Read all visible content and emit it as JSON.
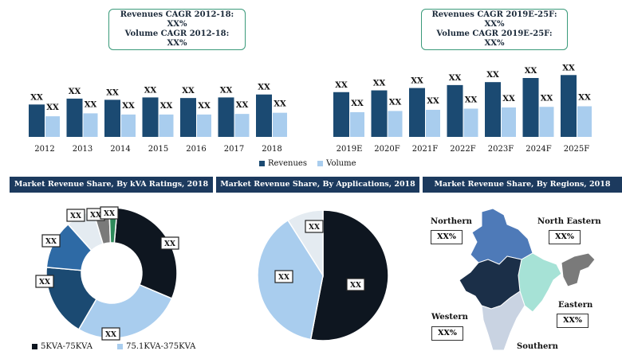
{
  "colors": {
    "revenue": "#1b4a72",
    "volume": "#a9cdee",
    "header": "#1c3a5e",
    "box_border": "#3a9a7a"
  },
  "cagr_left": {
    "line1": "Revenues CAGR 2012-18: XX%",
    "line2": "Volume CAGR 2012-18: XX%"
  },
  "cagr_right": {
    "line1": "Revenues CAGR 2019E-25F: XX%",
    "line2": "Volume CAGR 2019E-25F: XX%"
  },
  "chart_data": [
    {
      "type": "bar",
      "categories": [
        "2012",
        "2013",
        "2014",
        "2015",
        "2016",
        "2017",
        "2018",
        "2019E",
        "2020F",
        "2021F",
        "2022F",
        "2023F",
        "2024F",
        "2025F"
      ],
      "series": [
        {
          "name": "Revenues",
          "values": [
            55,
            65,
            63,
            67,
            66,
            67,
            72,
            76,
            79,
            83,
            88,
            93,
            100,
            105
          ],
          "labels": [
            "XX",
            "XX",
            "XX",
            "XX",
            "XX",
            "XX",
            "XX",
            "XX",
            "XX",
            "XX",
            "XX",
            "XX",
            "XX",
            "XX"
          ]
        },
        {
          "name": "Volume",
          "values": [
            35,
            40,
            38,
            38,
            38,
            39,
            41,
            42,
            44,
            46,
            48,
            50,
            51,
            52
          ],
          "labels": [
            "XX",
            "XX",
            "XX",
            "XX",
            "XX",
            "XX",
            "XX",
            "XX",
            "XX",
            "XX",
            "XX",
            "XX",
            "XX",
            "XX"
          ]
        }
      ],
      "legend_position": "bottom",
      "grid": false
    },
    {
      "type": "pie",
      "title": "Market Revenue Share, By kVA Ratings, 2018",
      "slices": [
        {
          "label": "5KVA-75KVA",
          "value": 30,
          "color": "#0e1620",
          "tag": "XX"
        },
        {
          "label": "75.1KVA-375KVA",
          "value": 27,
          "color": "#a9cdee",
          "tag": "XX"
        },
        {
          "label": "",
          "value": 18,
          "color": "#1b4a72",
          "tag": "XX"
        },
        {
          "label": "",
          "value": 12,
          "color": "#2e6aa5",
          "tag": "XX"
        },
        {
          "label": "",
          "value": 7,
          "color": "#e4ebf1",
          "tag": "XX"
        },
        {
          "label": "",
          "value": 4,
          "color": "#7a7a7a",
          "tag": "XX"
        },
        {
          "label": "",
          "value": 2,
          "color": "#2e8a5a",
          "tag": "XX"
        }
      ],
      "donut": true,
      "legend": [
        "5KVA-75KVA",
        "75.1KVA-375KVA"
      ]
    },
    {
      "type": "pie",
      "title": "Market Revenue Share, By Applications, 2018",
      "slices": [
        {
          "value": 53,
          "color": "#0e1620",
          "tag": "XX"
        },
        {
          "value": 38,
          "color": "#a9cdee",
          "tag": "XX"
        },
        {
          "value": 9,
          "color": "#e4ebf1",
          "tag": "XX"
        }
      ]
    }
  ],
  "regions": {
    "title": "Market Revenue Share, By Regions, 2018",
    "items": [
      {
        "name": "Northern",
        "value": "XX%"
      },
      {
        "name": "North Eastern",
        "value": "XX%"
      },
      {
        "name": "Eastern",
        "value": "XX%"
      },
      {
        "name": "Western",
        "value": "XX%"
      },
      {
        "name": "Southern",
        "value": ""
      }
    ]
  }
}
